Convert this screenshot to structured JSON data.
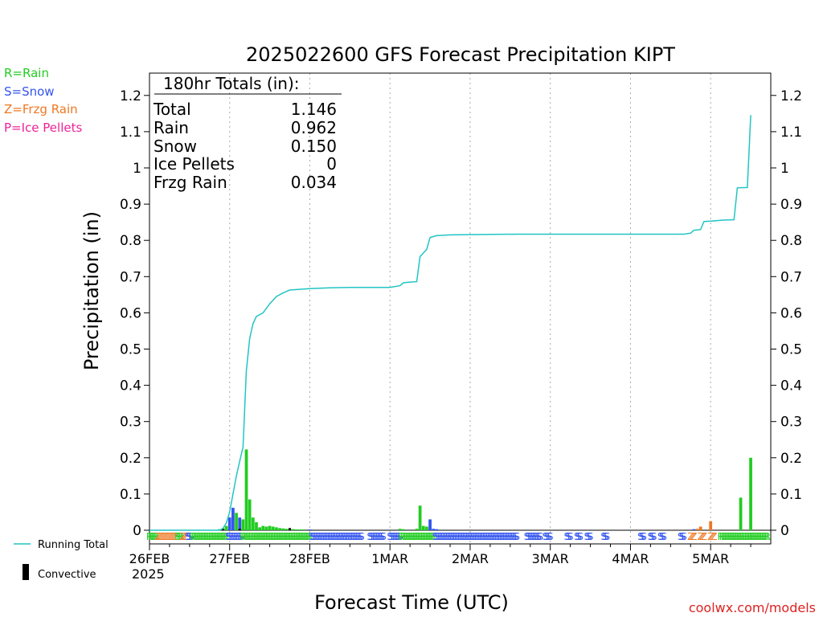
{
  "chart_data": {
    "type": "line",
    "title": "2025022600 GFS Forecast Precipitation KIPT",
    "xlabel": "Forecast Time (UTC)",
    "ylabel": "Precipitation (in)",
    "ylim": [
      0,
      1.26
    ],
    "xlim_hours": [
      0,
      186
    ],
    "y_ticks": [
      0,
      0.1,
      0.2,
      0.3,
      0.4,
      0.5,
      0.6,
      0.7,
      0.8,
      0.9,
      1,
      1.1,
      1.2
    ],
    "y_tick_labels": [
      "0",
      "0.1",
      "0.2",
      "0.3",
      "0.4",
      "0.5",
      "0.6",
      "0.7",
      "0.8",
      "0.9",
      "1",
      "1.1",
      "1.2"
    ],
    "x_ticks": [
      {
        "hour": 0,
        "label": "26FEB"
      },
      {
        "hour": 24,
        "label": "27FEB"
      },
      {
        "hour": 48,
        "label": "28FEB"
      },
      {
        "hour": 72,
        "label": "1MAR"
      },
      {
        "hour": 96,
        "label": "2MAR"
      },
      {
        "hour": 120,
        "label": "3MAR"
      },
      {
        "hour": 144,
        "label": "4MAR"
      },
      {
        "hour": 168,
        "label": "5MAR"
      }
    ],
    "year_label": "2025",
    "grid": "vertical dotted at each day",
    "legend": {
      "ptype": [
        {
          "code": "R",
          "label": "R=Rain",
          "color": "#22cc22"
        },
        {
          "code": "S",
          "label": "S=Snow",
          "color": "#3355ee"
        },
        {
          "code": "Z",
          "label": "Z=Frzg Rain",
          "color": "#ee7722"
        },
        {
          "code": "P",
          "label": "P=Ice Pellets",
          "color": "#ee2299"
        }
      ],
      "running_total_label": "Running Total",
      "convective_label": "Convective"
    },
    "totals_box": {
      "heading": "180hr Totals (in):",
      "rows": [
        {
          "label": "Total",
          "value": "1.146"
        },
        {
          "label": "Rain",
          "value": "0.962"
        },
        {
          "label": "Snow",
          "value": "0.150"
        },
        {
          "label": "Ice Pellets",
          "value": "0"
        },
        {
          "label": "Frzg Rain",
          "value": "0.034"
        }
      ]
    },
    "running_total": {
      "name": "Running Total",
      "color": "#22c4c4",
      "points": [
        [
          0,
          0
        ],
        [
          21,
          0
        ],
        [
          22,
          0.005
        ],
        [
          23,
          0.02
        ],
        [
          24,
          0.05
        ],
        [
          25,
          0.1
        ],
        [
          26,
          0.15
        ],
        [
          27,
          0.19
        ],
        [
          28,
          0.23
        ],
        [
          29,
          0.44
        ],
        [
          30,
          0.53
        ],
        [
          31,
          0.57
        ],
        [
          32,
          0.59
        ],
        [
          34,
          0.6
        ],
        [
          36,
          0.625
        ],
        [
          38,
          0.645
        ],
        [
          40,
          0.655
        ],
        [
          42,
          0.663
        ],
        [
          45,
          0.665
        ],
        [
          48,
          0.667
        ],
        [
          54,
          0.669
        ],
        [
          60,
          0.67
        ],
        [
          72,
          0.67
        ],
        [
          75,
          0.675
        ],
        [
          76,
          0.683
        ],
        [
          78,
          0.685
        ],
        [
          80,
          0.686
        ],
        [
          81,
          0.755
        ],
        [
          83,
          0.775
        ],
        [
          84,
          0.808
        ],
        [
          86,
          0.813
        ],
        [
          90,
          0.815
        ],
        [
          96,
          0.816
        ],
        [
          110,
          0.817
        ],
        [
          160,
          0.817
        ],
        [
          162,
          0.82
        ],
        [
          163,
          0.828
        ],
        [
          165,
          0.83
        ],
        [
          166,
          0.852
        ],
        [
          168,
          0.853
        ],
        [
          172,
          0.856
        ],
        [
          175,
          0.857
        ],
        [
          176,
          0.945
        ],
        [
          179,
          0.946
        ],
        [
          180,
          1.146
        ]
      ]
    },
    "bars": [
      {
        "hour": 21,
        "value": 0.003,
        "type": "R"
      },
      {
        "hour": 22,
        "value": 0.005,
        "type": "R"
      },
      {
        "hour": 23,
        "value": 0.012,
        "type": "R"
      },
      {
        "hour": 24,
        "value": 0.035,
        "type": "S"
      },
      {
        "hour": 25,
        "value": 0.062,
        "type": "S"
      },
      {
        "hour": 26,
        "value": 0.048,
        "type": "R"
      },
      {
        "hour": 27,
        "value": 0.035,
        "type": "S"
      },
      {
        "hour": 28,
        "value": 0.03,
        "type": "R"
      },
      {
        "hour": 29,
        "value": 0.223,
        "type": "R"
      },
      {
        "hour": 30,
        "value": 0.085,
        "type": "R"
      },
      {
        "hour": 31,
        "value": 0.035,
        "type": "R"
      },
      {
        "hour": 32,
        "value": 0.022,
        "type": "R"
      },
      {
        "hour": 33,
        "value": 0.008,
        "type": "R"
      },
      {
        "hour": 34,
        "value": 0.012,
        "type": "R"
      },
      {
        "hour": 35,
        "value": 0.01,
        "type": "R"
      },
      {
        "hour": 36,
        "value": 0.012,
        "type": "R"
      },
      {
        "hour": 37,
        "value": 0.01,
        "type": "R"
      },
      {
        "hour": 38,
        "value": 0.008,
        "type": "R"
      },
      {
        "hour": 39,
        "value": 0.006,
        "type": "R"
      },
      {
        "hour": 40,
        "value": 0.005,
        "type": "R"
      },
      {
        "hour": 41,
        "value": 0.004,
        "type": "R"
      },
      {
        "hour": 42,
        "value": 0.003,
        "type": "R"
      },
      {
        "hour": 43,
        "value": 0.003,
        "type": "R"
      },
      {
        "hour": 44,
        "value": 0.002,
        "type": "R"
      },
      {
        "hour": 45,
        "value": 0.002,
        "type": "R"
      },
      {
        "hour": 46,
        "value": 0.002,
        "type": "R"
      },
      {
        "hour": 48,
        "value": 0.002,
        "type": "S"
      },
      {
        "hour": 75,
        "value": 0.004,
        "type": "R"
      },
      {
        "hour": 76,
        "value": 0.003,
        "type": "R"
      },
      {
        "hour": 80,
        "value": 0.004,
        "type": "R"
      },
      {
        "hour": 81,
        "value": 0.068,
        "type": "R"
      },
      {
        "hour": 82,
        "value": 0.012,
        "type": "R"
      },
      {
        "hour": 83,
        "value": 0.01,
        "type": "R"
      },
      {
        "hour": 84,
        "value": 0.03,
        "type": "S"
      },
      {
        "hour": 85,
        "value": 0.004,
        "type": "S"
      },
      {
        "hour": 86,
        "value": 0.003,
        "type": "S"
      },
      {
        "hour": 163,
        "value": 0.003,
        "type": "S"
      },
      {
        "hour": 164,
        "value": 0.004,
        "type": "Z"
      },
      {
        "hour": 165,
        "value": 0.01,
        "type": "Z"
      },
      {
        "hour": 168,
        "value": 0.025,
        "type": "Z"
      },
      {
        "hour": 177,
        "value": 0.09,
        "type": "R"
      },
      {
        "hour": 180,
        "value": 0.2,
        "type": "R"
      }
    ],
    "convective_bars": [
      {
        "hour": 22,
        "value": 0.004
      },
      {
        "hour": 27,
        "value": 0.004
      },
      {
        "hour": 42,
        "value": 0.006
      }
    ],
    "ptype_row": [
      {
        "start": 0,
        "end": 2,
        "type": "R"
      },
      {
        "start": 2.5,
        "end": 8,
        "type": "Z"
      },
      {
        "start": 8.5,
        "end": 9.5,
        "type": "R"
      },
      {
        "start": 10,
        "end": 11,
        "type": "Z"
      },
      {
        "start": 11.5,
        "end": 12.5,
        "type": "S"
      },
      {
        "start": 13,
        "end": 23,
        "type": "R"
      },
      {
        "start": 23.5,
        "end": 27.5,
        "type": "S"
      },
      {
        "start": 28,
        "end": 48,
        "type": "R"
      },
      {
        "start": 48.5,
        "end": 63.5,
        "type": "S"
      },
      {
        "start": 66,
        "end": 70,
        "type": "S"
      },
      {
        "start": 72,
        "end": 75,
        "type": "S"
      },
      {
        "start": 75.5,
        "end": 85,
        "type": "R"
      },
      {
        "start": 85.5,
        "end": 110,
        "type": "S"
      },
      {
        "start": 113,
        "end": 117,
        "type": "S"
      },
      {
        "start": 118.5,
        "end": 120,
        "type": "S"
      },
      {
        "start": 125,
        "end": 126,
        "type": "S"
      },
      {
        "start": 128,
        "end": 129,
        "type": "S"
      },
      {
        "start": 131,
        "end": 132,
        "type": "S"
      },
      {
        "start": 136,
        "end": 137,
        "type": "S"
      },
      {
        "start": 147,
        "end": 148,
        "type": "S"
      },
      {
        "start": 150,
        "end": 151,
        "type": "S"
      },
      {
        "start": 153,
        "end": 154,
        "type": "S"
      },
      {
        "start": 159,
        "end": 160,
        "type": "S"
      },
      {
        "start": 162,
        "end": 163,
        "type": "Z"
      },
      {
        "start": 165,
        "end": 166,
        "type": "Z"
      },
      {
        "start": 168,
        "end": 169,
        "type": "Z"
      },
      {
        "start": 171,
        "end": 185,
        "type": "R"
      }
    ]
  },
  "credit": "coolwx.com/models"
}
